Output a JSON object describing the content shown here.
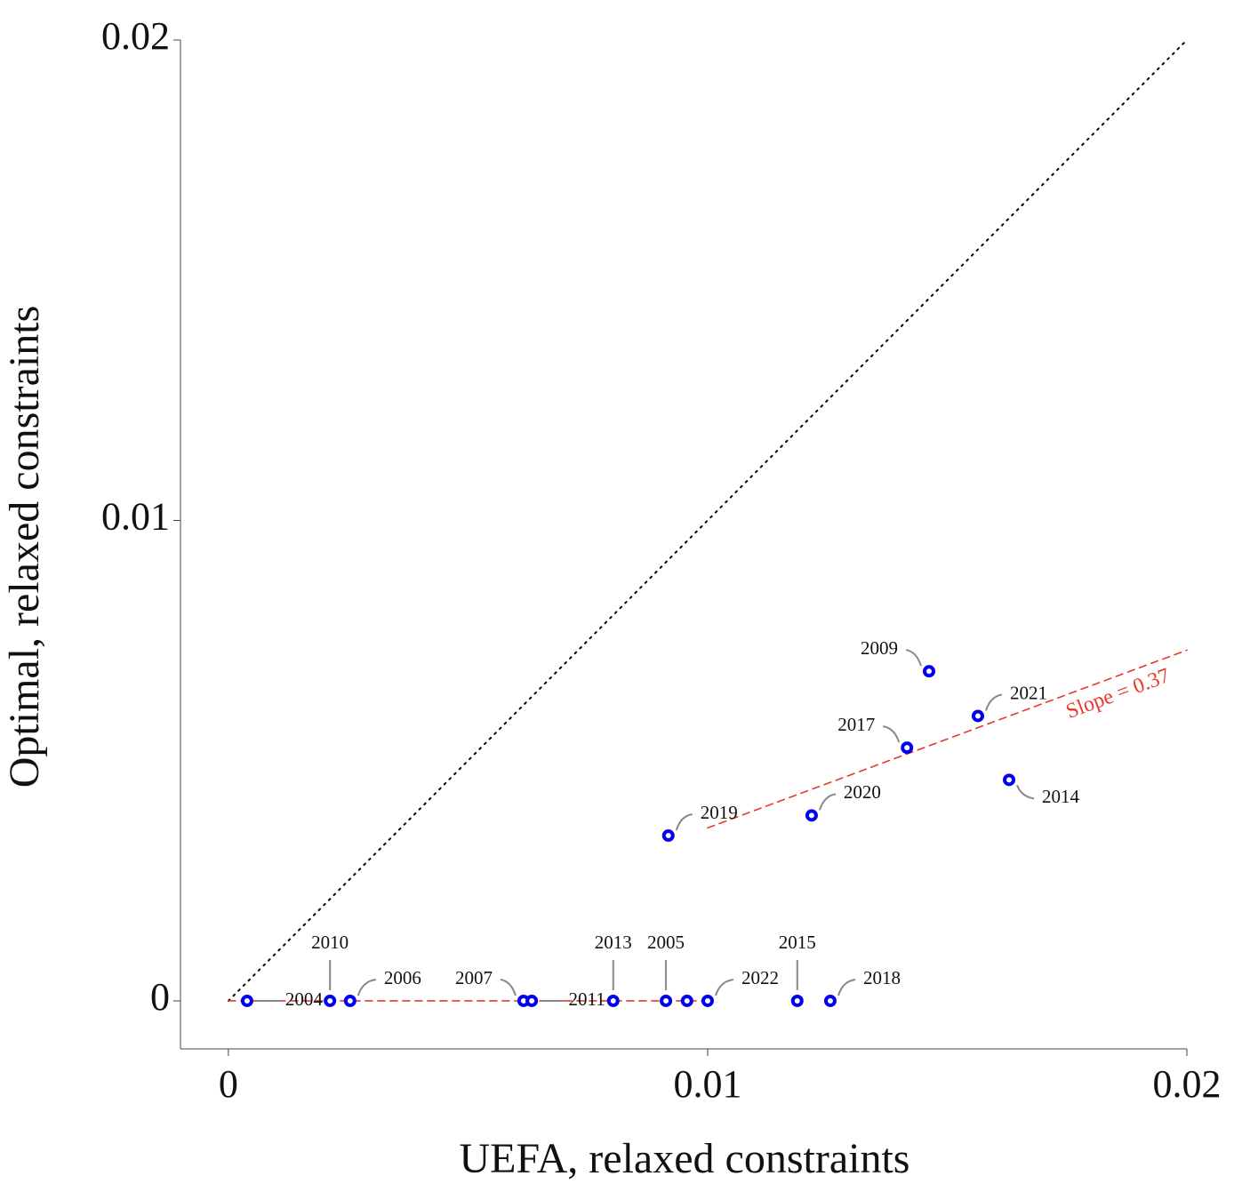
{
  "chart_data": {
    "type": "scatter",
    "x_label": "UEFA, relaxed constraints",
    "y_label": "Optimal, relaxed constraints",
    "xlim": [
      -0.001,
      0.02
    ],
    "ylim": [
      -0.001,
      0.02
    ],
    "xticks": [
      0,
      0.01,
      0.02
    ],
    "yticks": [
      0,
      0.01,
      0.02
    ],
    "color": "#0000ee",
    "labels": [
      "2004",
      "2010",
      "2006",
      "2007",
      "2011",
      "2013",
      "2005",
      null,
      "2022",
      "2015",
      "2018",
      "2019",
      "2020",
      "2017",
      "2009",
      "2021",
      "2014"
    ],
    "x": [
      0.00039,
      0.00212,
      0.00254,
      0.00616,
      0.00633,
      0.00803,
      0.00913,
      0.00957,
      0.01,
      0.01187,
      0.01256,
      0.00918,
      0.01217,
      0.01416,
      0.01462,
      0.01564,
      0.01629
    ],
    "values": [
      0,
      0,
      0,
      0,
      0,
      0,
      0,
      0,
      0,
      0,
      0,
      0.00344,
      0.00386,
      0.00527,
      0.00686,
      0.00593,
      0.0046
    ],
    "reference_lines": [
      {
        "style": "dotted",
        "color": "#000000",
        "x": [
          0,
          0.02
        ],
        "y": [
          0,
          0.02
        ]
      },
      {
        "style": "dashed",
        "color": "#e8382c",
        "x": [
          0,
          0.01
        ],
        "y": [
          0,
          0
        ]
      },
      {
        "style": "dashed",
        "color": "#e8382c",
        "x": [
          0.01,
          0.02
        ],
        "y": [
          0.0036,
          0.0073
        ]
      }
    ],
    "annotation": "Slope = 0.37"
  }
}
